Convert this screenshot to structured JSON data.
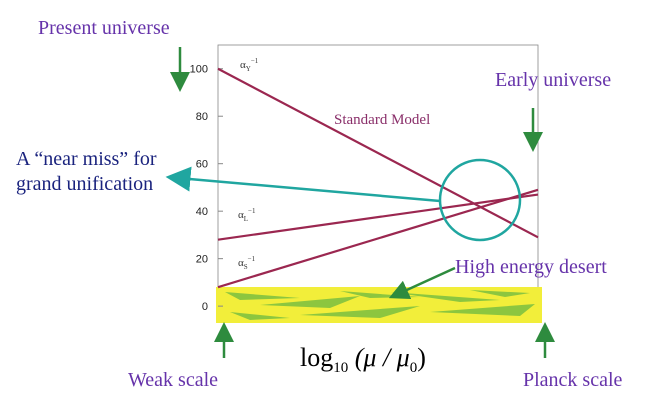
{
  "chart_data": {
    "type": "line",
    "x": [
      2,
      19
    ],
    "xlim": [
      2,
      19
    ],
    "ylim": [
      -5,
      110
    ],
    "yticks": [
      0,
      20,
      40,
      60,
      80,
      100
    ],
    "series": [
      {
        "name": "α",
        "subscript": "Y",
        "superscript": "−1",
        "color": "#9b2750",
        "values": [
          100,
          29
        ]
      },
      {
        "name": "α",
        "subscript": "L",
        "superscript": "−1",
        "color": "#9b2750",
        "values": [
          28,
          47
        ]
      },
      {
        "name": "α",
        "subscript": "S",
        "superscript": "−1",
        "color": "#9b2750",
        "values": [
          8,
          49
        ]
      }
    ],
    "x_label": [
      "log",
      "10",
      " (μ / μ",
      "0",
      ")"
    ],
    "annotations": {
      "present": "Present universe",
      "early": "Early universe",
      "model": "Standard Model",
      "near_miss": [
        "A “near miss” for",
        "grand unification"
      ],
      "desert": "High energy desert",
      "weak": "Weak scale",
      "planck": "Planck scale"
    }
  }
}
